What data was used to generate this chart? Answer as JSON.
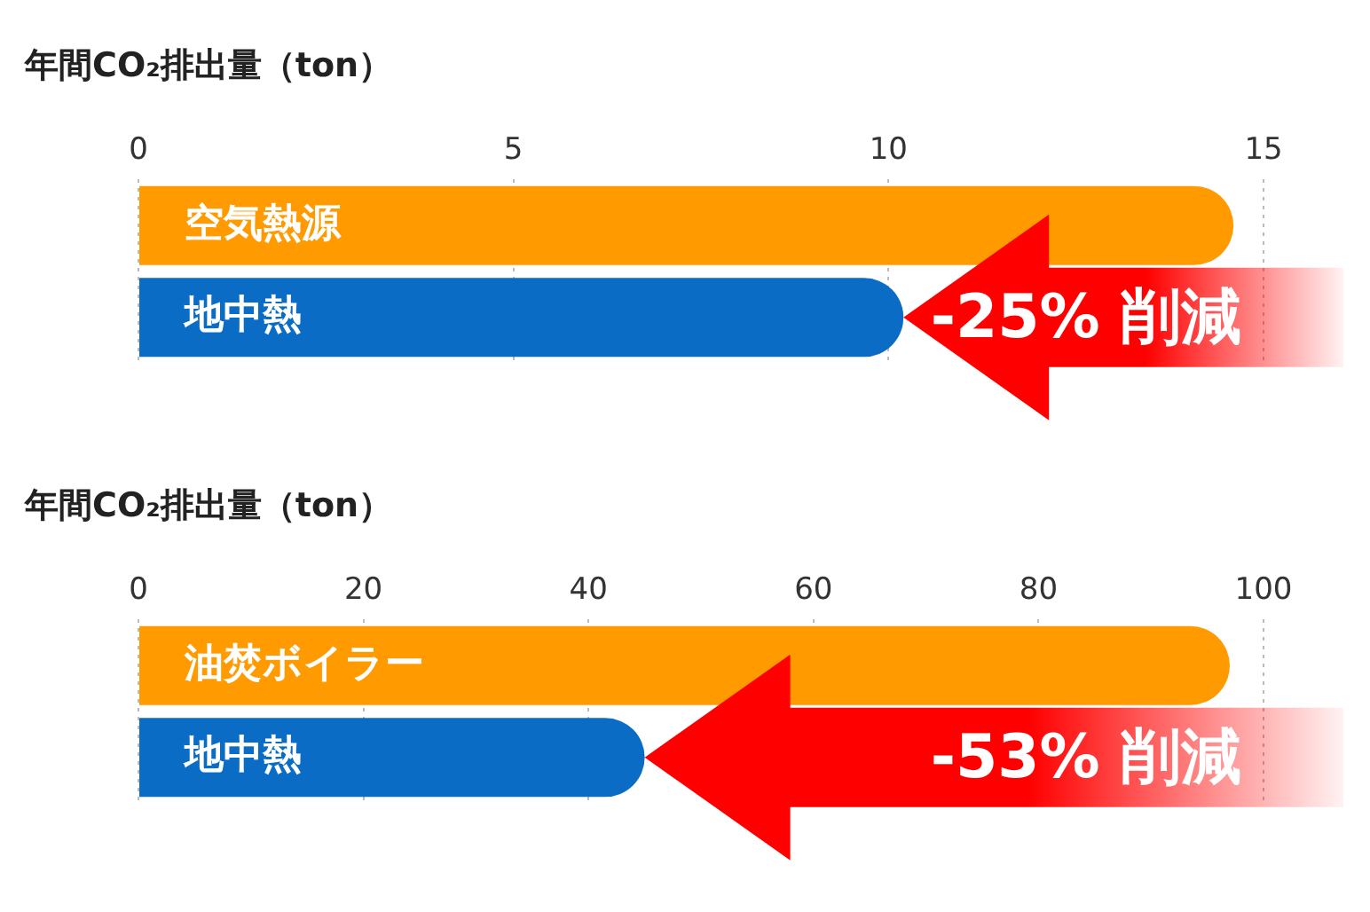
{
  "chart_data": [
    {
      "type": "bar",
      "orientation": "horizontal",
      "title": "年間CO₂排出量（ton）",
      "categories": [
        "空気熱源",
        "地中熱"
      ],
      "values": [
        14.6,
        10.2
      ],
      "colors": [
        "#ff9a00",
        "#0a6cc4"
      ],
      "xlim": [
        0,
        15
      ],
      "xticks": [
        0,
        5,
        10,
        15
      ],
      "grid": "x",
      "legend": false,
      "annotations": [
        "-25% 削減"
      ]
    },
    {
      "type": "bar",
      "orientation": "horizontal",
      "title": "年間CO₂排出量（ton）",
      "categories": [
        "油焚ボイラー",
        "地中熱"
      ],
      "values": [
        97,
        45
      ],
      "colors": [
        "#ff9a00",
        "#0a6cc4"
      ],
      "xlim": [
        0,
        100
      ],
      "xticks": [
        0,
        20,
        40,
        60,
        80,
        100
      ],
      "grid": "x",
      "legend": false,
      "annotations": [
        "-53% 削減"
      ]
    }
  ]
}
